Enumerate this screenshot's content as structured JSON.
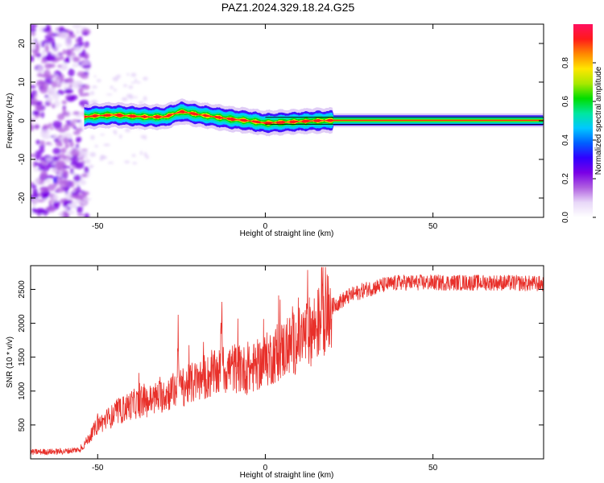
{
  "title": "PAZ1.2024.329.18.24.G25",
  "chart_data": [
    {
      "type": "heatmap",
      "xlabel": "Height of straight line (km)",
      "ylabel": "Frequency (Hz)",
      "xlim": [
        -70,
        83
      ],
      "ylim": [
        -25,
        25
      ],
      "xticks": [
        -50,
        0,
        50
      ],
      "yticks": [
        -20,
        -10,
        0,
        10,
        20
      ],
      "colorbar": {
        "label": "Normalized spectral amplitude",
        "range": [
          0,
          1
        ],
        "ticks": [
          "0.0",
          "0.2",
          "0.4",
          "0.6",
          "0.8"
        ],
        "colors": [
          "#ffffff",
          "#e8d8f8",
          "#b060e0",
          "#7a00e6",
          "#3000ff",
          "#0060ff",
          "#00c8ff",
          "#00e6a0",
          "#00dd00",
          "#a8e800",
          "#ffe600",
          "#ff8800",
          "#ff1a1a",
          "#ff1060"
        ]
      },
      "ridge": {
        "x": [
          -54,
          -50,
          -45,
          -40,
          -35,
          -30,
          -25,
          -20,
          -15,
          -10,
          -5,
          0,
          5,
          10,
          15,
          20,
          30,
          40,
          50,
          60,
          70,
          83
        ],
        "frequency": [
          1.0,
          1.3,
          1.5,
          1.2,
          1.0,
          1.0,
          2.4,
          1.6,
          1.0,
          0.4,
          0.0,
          -0.6,
          -0.4,
          -0.2,
          0.0,
          0.1,
          0.1,
          0.1,
          0.1,
          0.1,
          0.1,
          0.1
        ]
      },
      "noise_region_x": [
        -70,
        -53
      ],
      "grid": false
    },
    {
      "type": "line",
      "xlabel": "Height of straight line (km)",
      "ylabel": "SNR (10 * v/v)",
      "xlim": [
        -70,
        83
      ],
      "ylim": [
        0,
        2850
      ],
      "xticks": [
        -50,
        0,
        50
      ],
      "yticks": [
        500,
        1000,
        1500,
        2000,
        2500
      ],
      "color": "#e8302a",
      "grid": false,
      "envelope": {
        "x": [
          -70,
          -60,
          -55,
          -52,
          -50,
          -45,
          -40,
          -35,
          -30,
          -25,
          -20,
          -15,
          -10,
          -5,
          0,
          5,
          10,
          15,
          20,
          25,
          30,
          35,
          40,
          50,
          60,
          70,
          83
        ],
        "snr": [
          100,
          110,
          140,
          350,
          500,
          650,
          800,
          850,
          950,
          1050,
          1150,
          1250,
          1350,
          1300,
          1450,
          1600,
          1750,
          1950,
          2250,
          2400,
          2500,
          2560,
          2600,
          2600,
          2600,
          2600,
          2580
        ]
      },
      "spikes": [
        {
          "x": -26,
          "snr": 2100
        },
        {
          "x": -13,
          "snr": 2450
        },
        {
          "x": 17,
          "snr": 2800
        }
      ]
    }
  ]
}
